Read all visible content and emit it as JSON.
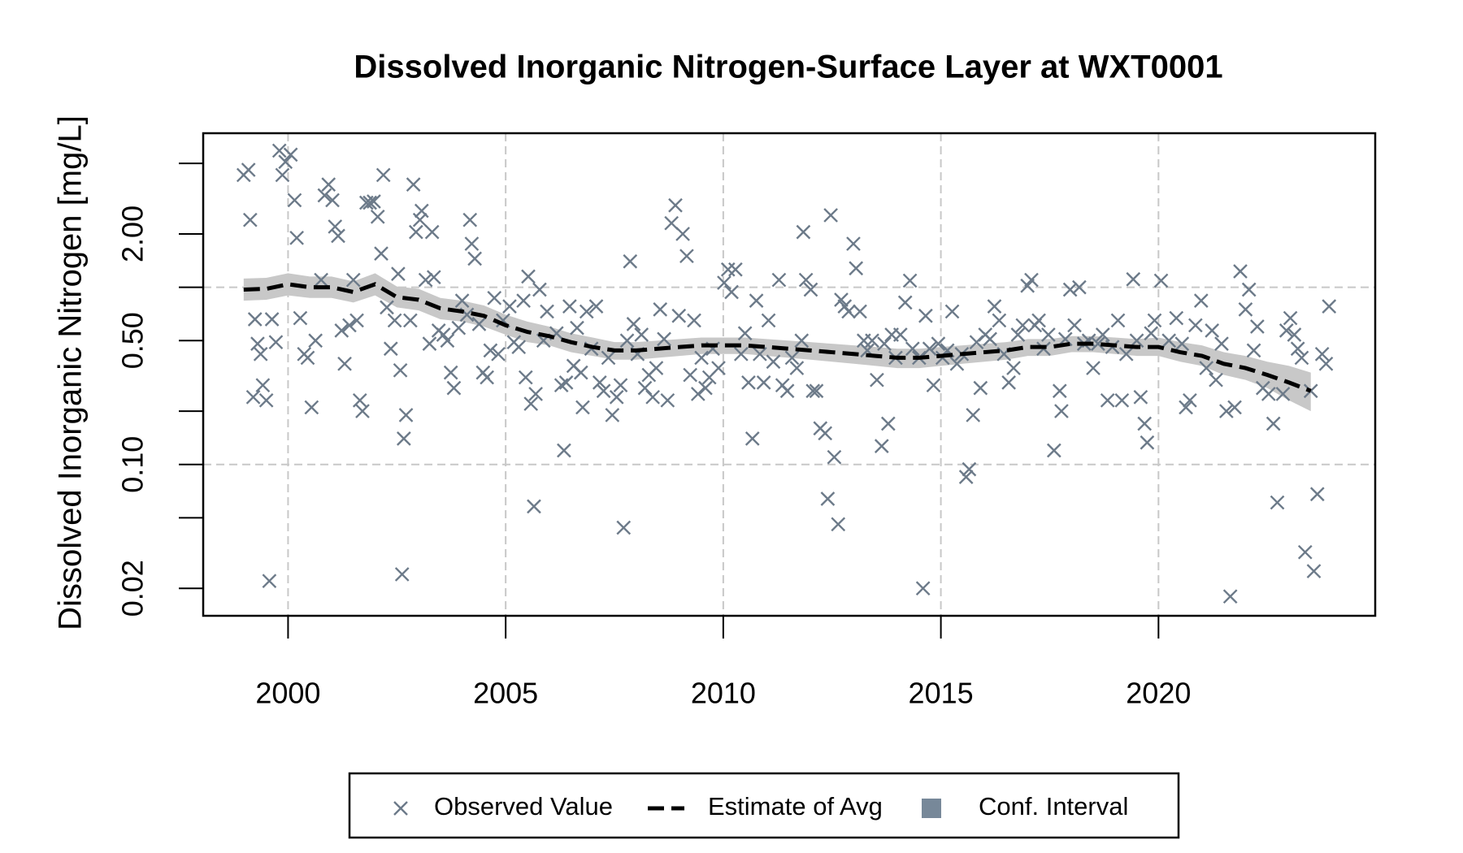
{
  "chart_data": {
    "type": "scatter",
    "title": "Dissolved Inorganic Nitrogen-Surface Layer at WXT0001",
    "y_label": "Dissolved Inorganic Nitrogen [mg/L]",
    "y_log": true,
    "xlim": [
      1998.05,
      2024.98
    ],
    "ylim": [
      0.014,
      7.4
    ],
    "xticks": [
      2000,
      2005,
      2010,
      2015,
      2020
    ],
    "yticks": [
      {
        "value": 0.02,
        "label": "0.02"
      },
      {
        "value": 0.1,
        "label": "0.10"
      },
      {
        "value": 0.5,
        "label": "0.50"
      },
      {
        "value": 2,
        "label": "2.00"
      }
    ],
    "yticks_unlabeled": [
      0.05,
      0.2,
      1,
      5
    ],
    "xgrid": true,
    "ygrid": [
      0.1,
      1
    ],
    "series": [
      {
        "name": "Observed Value",
        "color": "#6c7a89",
        "marker": "x",
        "x": [
          1998.98,
          1999.09,
          1999.13,
          1999.2,
          1999.24,
          1999.3,
          1999.37,
          1999.42,
          1999.5,
          1999.57,
          1999.63,
          1999.72,
          1999.8,
          1999.87,
          1999.94,
          2000.06,
          2000.15,
          2000.2,
          2000.28,
          2000.37,
          2000.45,
          2000.54,
          2000.63,
          2000.76,
          2000.84,
          2000.93,
          2001.02,
          2001.08,
          2001.15,
          2001.23,
          2001.3,
          2001.41,
          2001.5,
          2001.58,
          2001.65,
          2001.71,
          2001.8,
          2001.88,
          2001.97,
          2002.06,
          2002.14,
          2002.19,
          2002.27,
          2002.36,
          2002.45,
          2002.53,
          2002.58,
          2002.62,
          2002.66,
          2002.71,
          2002.81,
          2002.88,
          2002.94,
          2003.03,
          2003.07,
          2003.16,
          2003.25,
          2003.31,
          2003.35,
          2003.46,
          2003.57,
          2003.66,
          2003.74,
          2003.81,
          2003.92,
          2004.0,
          2004.11,
          2004.18,
          2004.22,
          2004.29,
          2004.39,
          2004.48,
          2004.57,
          2004.65,
          2004.74,
          2004.83,
          2004.94,
          2005.09,
          2005.19,
          2005.3,
          2005.41,
          2005.46,
          2005.52,
          2005.58,
          2005.65,
          2005.69,
          2005.78,
          2005.87,
          2005.95,
          2006.17,
          2006.28,
          2006.34,
          2006.39,
          2006.47,
          2006.56,
          2006.64,
          2006.73,
          2006.77,
          2006.86,
          2006.97,
          2007.08,
          2007.16,
          2007.25,
          2007.36,
          2007.45,
          2007.55,
          2007.64,
          2007.71,
          2007.79,
          2007.86,
          2007.94,
          2008.03,
          2008.12,
          2008.2,
          2008.29,
          2008.38,
          2008.46,
          2008.55,
          2008.64,
          2008.72,
          2008.81,
          2008.9,
          2008.98,
          2009.07,
          2009.16,
          2009.24,
          2009.33,
          2009.42,
          2009.5,
          2009.59,
          2009.68,
          2009.76,
          2009.89,
          2010.02,
          2010.11,
          2010.19,
          2010.28,
          2010.41,
          2010.5,
          2010.58,
          2010.67,
          2010.76,
          2010.84,
          2010.93,
          2011.04,
          2011.15,
          2011.28,
          2011.36,
          2011.47,
          2011.58,
          2011.69,
          2011.8,
          2011.84,
          2011.9,
          2012.01,
          2012.06,
          2012.14,
          2012.23,
          2012.34,
          2012.4,
          2012.47,
          2012.55,
          2012.64,
          2012.71,
          2012.79,
          2012.88,
          2012.99,
          2013.05,
          2013.14,
          2013.23,
          2013.31,
          2013.42,
          2013.53,
          2013.64,
          2013.7,
          2013.79,
          2013.87,
          2013.96,
          2014.07,
          2014.18,
          2014.29,
          2014.35,
          2014.5,
          2014.59,
          2014.65,
          2014.74,
          2014.83,
          2014.94,
          2015.04,
          2015.15,
          2015.26,
          2015.37,
          2015.48,
          2015.58,
          2015.65,
          2015.74,
          2015.82,
          2015.91,
          2016.02,
          2016.13,
          2016.23,
          2016.34,
          2016.45,
          2016.56,
          2016.67,
          2016.77,
          2016.88,
          2016.99,
          2017.08,
          2017.16,
          2017.25,
          2017.36,
          2017.47,
          2017.6,
          2017.73,
          2017.77,
          2017.86,
          2017.97,
          2018.07,
          2018.18,
          2018.29,
          2018.4,
          2018.5,
          2018.61,
          2018.72,
          2018.83,
          2018.94,
          2019.07,
          2019.16,
          2019.26,
          2019.42,
          2019.5,
          2019.59,
          2019.68,
          2019.74,
          2019.83,
          2019.91,
          2020.06,
          2020.24,
          2020.41,
          2020.54,
          2020.63,
          2020.72,
          2020.85,
          2020.98,
          2021.1,
          2021.23,
          2021.32,
          2021.45,
          2021.56,
          2021.65,
          2021.75,
          2021.88,
          2022.0,
          2022.08,
          2022.19,
          2022.27,
          2022.4,
          2022.53,
          2022.64,
          2022.73,
          2022.86,
          2022.94,
          2023.03,
          2023.12,
          2023.2,
          2023.29,
          2023.37,
          2023.5,
          2023.57,
          2023.65,
          2023.76,
          2023.85,
          2023.92
        ],
        "values": [
          4.3,
          4.6,
          2.4,
          0.24,
          0.66,
          0.48,
          0.42,
          0.28,
          0.23,
          0.022,
          0.66,
          0.49,
          5.9,
          4.3,
          5.1,
          5.6,
          3.1,
          1.9,
          0.67,
          0.42,
          0.4,
          0.21,
          0.5,
          1.1,
          3.3,
          3.8,
          3.1,
          2.2,
          1.95,
          0.57,
          0.37,
          0.61,
          1.1,
          0.65,
          0.23,
          0.2,
          3.0,
          3.0,
          3.05,
          2.5,
          1.55,
          4.3,
          0.77,
          0.45,
          0.65,
          1.19,
          0.34,
          0.024,
          0.14,
          0.19,
          0.65,
          3.8,
          2.05,
          2.4,
          2.7,
          1.1,
          0.48,
          2.05,
          1.14,
          0.57,
          0.54,
          0.5,
          0.33,
          0.27,
          0.59,
          0.84,
          0.7,
          2.4,
          1.76,
          1.45,
          0.62,
          0.33,
          0.31,
          0.44,
          0.87,
          0.42,
          0.65,
          0.78,
          0.49,
          0.46,
          0.84,
          0.31,
          1.15,
          0.22,
          0.058,
          0.25,
          0.97,
          0.5,
          0.73,
          0.55,
          0.28,
          0.12,
          0.29,
          0.78,
          0.36,
          0.59,
          0.33,
          0.21,
          0.73,
          0.45,
          0.78,
          0.29,
          0.26,
          0.4,
          0.19,
          0.24,
          0.28,
          0.044,
          0.5,
          1.4,
          0.62,
          0.42,
          0.54,
          0.27,
          0.32,
          0.24,
          0.35,
          0.75,
          0.51,
          0.23,
          2.3,
          2.9,
          0.69,
          2.0,
          1.5,
          0.32,
          0.65,
          0.25,
          0.4,
          0.27,
          0.31,
          0.45,
          0.35,
          1.06,
          1.26,
          0.94,
          1.26,
          0.42,
          0.55,
          0.29,
          0.14,
          0.84,
          0.42,
          0.29,
          0.65,
          0.38,
          1.1,
          0.28,
          0.26,
          0.4,
          0.35,
          0.5,
          2.05,
          1.1,
          0.97,
          0.26,
          0.26,
          0.16,
          0.15,
          0.064,
          2.55,
          0.11,
          0.046,
          0.85,
          0.78,
          0.73,
          1.76,
          1.28,
          0.73,
          0.5,
          0.44,
          0.5,
          0.3,
          0.127,
          0.48,
          0.17,
          0.54,
          0.4,
          0.54,
          0.82,
          1.09,
          0.45,
          0.4,
          0.02,
          0.69,
          0.45,
          0.28,
          0.48,
          0.4,
          0.44,
          0.73,
          0.37,
          0.42,
          0.085,
          0.094,
          0.19,
          0.49,
          0.27,
          0.54,
          0.51,
          0.78,
          0.65,
          0.42,
          0.29,
          0.35,
          0.54,
          0.61,
          1.02,
          1.1,
          0.61,
          0.65,
          0.45,
          0.54,
          0.12,
          0.26,
          0.2,
          0.51,
          0.97,
          0.61,
          1.0,
          0.48,
          0.5,
          0.35,
          0.48,
          0.54,
          0.23,
          0.46,
          0.65,
          0.23,
          0.42,
          1.11,
          0.5,
          0.24,
          0.17,
          0.133,
          0.55,
          0.65,
          1.09,
          0.5,
          0.67,
          0.48,
          0.21,
          0.23,
          0.61,
          0.84,
          0.35,
          0.57,
          0.3,
          0.48,
          0.2,
          0.018,
          0.21,
          1.23,
          0.75,
          0.97,
          0.44,
          0.6,
          0.27,
          0.25,
          0.17,
          0.061,
          0.25,
          0.57,
          0.67,
          0.54,
          0.45,
          0.4,
          0.032,
          0.26,
          0.025,
          0.068,
          0.42,
          0.37,
          0.78
        ]
      },
      {
        "name": "Estimate of Avg",
        "color": "#000000",
        "style": "dashed",
        "x": [
          1998.98,
          1999.5,
          2000,
          2000.5,
          2001,
          2001.5,
          2002,
          2002.5,
          2003,
          2003.5,
          2004,
          2004.5,
          2005,
          2005.5,
          2006,
          2006.5,
          2007,
          2007.5,
          2008,
          2008.5,
          2009,
          2009.5,
          2010,
          2010.5,
          2011,
          2011.5,
          2012,
          2012.5,
          2013,
          2013.5,
          2014,
          2014.5,
          2015,
          2015.5,
          2016,
          2016.5,
          2017,
          2017.5,
          2018,
          2018.5,
          2019,
          2019.5,
          2020,
          2020.5,
          2021,
          2021.5,
          2022,
          2022.5,
          2023,
          2023.5
        ],
        "values": [
          0.97,
          0.98,
          1.04,
          1.0,
          1.0,
          0.94,
          1.04,
          0.88,
          0.85,
          0.76,
          0.73,
          0.69,
          0.61,
          0.56,
          0.53,
          0.49,
          0.46,
          0.44,
          0.44,
          0.45,
          0.46,
          0.47,
          0.47,
          0.47,
          0.46,
          0.45,
          0.44,
          0.43,
          0.42,
          0.41,
          0.4,
          0.4,
          0.41,
          0.42,
          0.43,
          0.44,
          0.46,
          0.46,
          0.48,
          0.48,
          0.47,
          0.46,
          0.46,
          0.43,
          0.41,
          0.37,
          0.35,
          0.32,
          0.29,
          0.26
        ]
      },
      {
        "name": "Conf. Interval",
        "color": "#c8c8c8",
        "legend_color": "#778899",
        "x": [
          1998.98,
          1999.5,
          2000,
          2000.5,
          2001,
          2001.5,
          2002,
          2002.5,
          2003,
          2003.5,
          2004,
          2004.5,
          2005,
          2005.5,
          2006,
          2006.5,
          2007,
          2007.5,
          2008,
          2008.5,
          2009,
          2009.5,
          2010,
          2010.5,
          2011,
          2011.5,
          2012,
          2012.5,
          2013,
          2013.5,
          2014,
          2014.5,
          2015,
          2015.5,
          2016,
          2016.5,
          2017,
          2017.5,
          2018,
          2018.5,
          2019,
          2019.5,
          2020,
          2020.5,
          2021,
          2021.5,
          2022,
          2022.5,
          2023,
          2023.5
        ],
        "lower": [
          0.84,
          0.85,
          0.9,
          0.87,
          0.87,
          0.82,
          0.9,
          0.77,
          0.74,
          0.66,
          0.64,
          0.6,
          0.54,
          0.49,
          0.47,
          0.43,
          0.41,
          0.39,
          0.39,
          0.4,
          0.41,
          0.42,
          0.42,
          0.42,
          0.41,
          0.4,
          0.39,
          0.38,
          0.37,
          0.36,
          0.35,
          0.35,
          0.36,
          0.37,
          0.38,
          0.39,
          0.41,
          0.41,
          0.43,
          0.43,
          0.42,
          0.41,
          0.41,
          0.38,
          0.36,
          0.32,
          0.3,
          0.27,
          0.23,
          0.2
        ],
        "upper": [
          1.12,
          1.13,
          1.2,
          1.15,
          1.15,
          1.08,
          1.2,
          1.01,
          0.98,
          0.87,
          0.84,
          0.79,
          0.7,
          0.64,
          0.6,
          0.55,
          0.52,
          0.49,
          0.49,
          0.5,
          0.51,
          0.52,
          0.52,
          0.52,
          0.51,
          0.5,
          0.49,
          0.48,
          0.47,
          0.46,
          0.45,
          0.45,
          0.46,
          0.47,
          0.48,
          0.49,
          0.51,
          0.51,
          0.53,
          0.53,
          0.52,
          0.51,
          0.52,
          0.49,
          0.47,
          0.43,
          0.41,
          0.38,
          0.36,
          0.33
        ]
      }
    ]
  }
}
